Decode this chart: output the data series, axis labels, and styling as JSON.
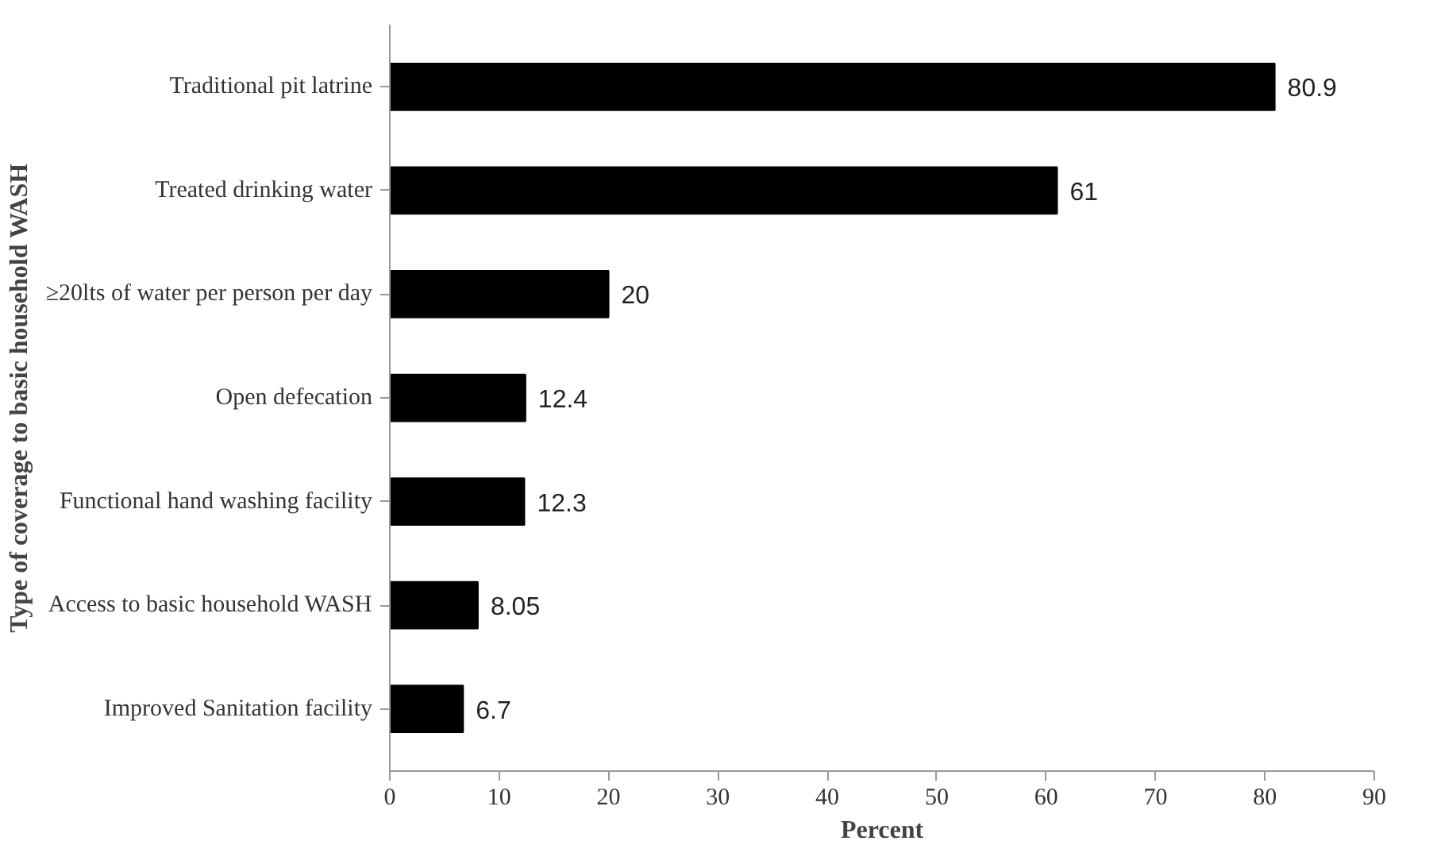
{
  "chart_data": {
    "type": "bar",
    "orientation": "horizontal",
    "xlabel": "Percent",
    "ylabel": "Type of coverage to basic household WASH",
    "categories": [
      "Traditional pit latrine",
      "Treated drinking water",
      "≥20lts of water per person per day",
      "Open defecation",
      "Functional hand washing facility",
      "Access to basic household WASH",
      "Improved Sanitation facility"
    ],
    "values": [
      80.9,
      61,
      20,
      12.4,
      12.3,
      8.05,
      6.7
    ],
    "color": "#000000",
    "xlim": [
      0,
      90
    ],
    "xticks": [
      0,
      10,
      20,
      30,
      40,
      50,
      60,
      70,
      80,
      90
    ],
    "data_labels": true,
    "grid": false
  }
}
